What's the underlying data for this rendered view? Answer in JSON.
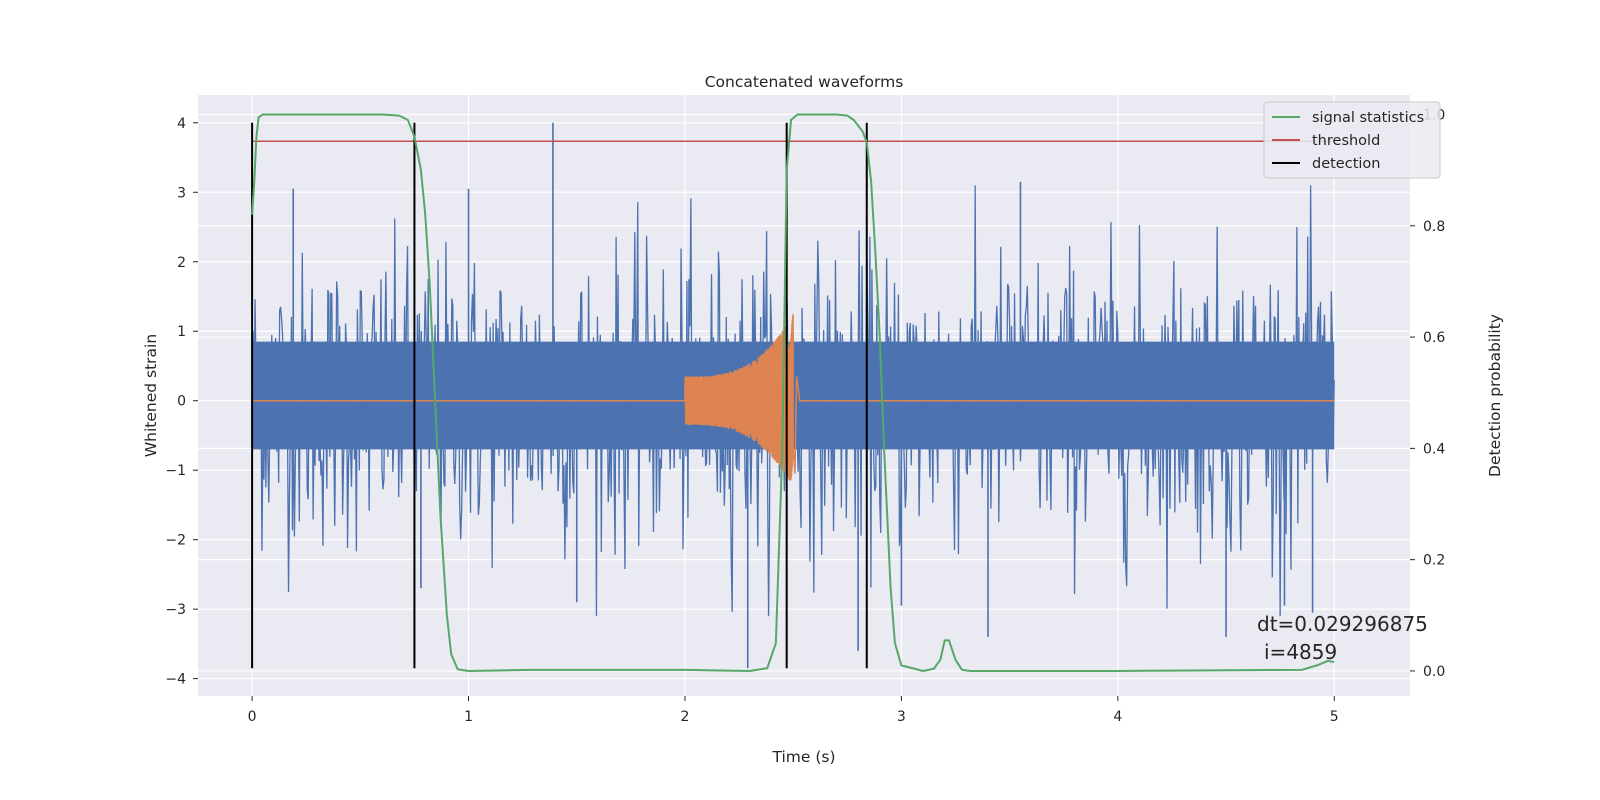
{
  "chart_data": {
    "type": "line",
    "title": "Concatenated waveforms",
    "xlabel": "Time (s)",
    "ylabel": "Whitened strain",
    "y2label": "Detection probability",
    "xlim": [
      -0.25,
      5.35
    ],
    "ylim": [
      -4.25,
      4.4
    ],
    "y2lim": [
      -0.045,
      1.035
    ],
    "xticks": [
      0,
      1,
      2,
      3,
      4,
      5
    ],
    "yticks": [
      -4,
      -3,
      -2,
      -1,
      0,
      1,
      2,
      3,
      4
    ],
    "y2ticks": [
      0.0,
      0.2,
      0.4,
      0.6,
      0.8,
      1.0
    ],
    "xtick_labels": [
      "0",
      "1",
      "2",
      "3",
      "4",
      "5"
    ],
    "ytick_labels": [
      "−4",
      "−3",
      "−2",
      "−1",
      "0",
      "1",
      "2",
      "3",
      "4"
    ],
    "y2tick_labels": [
      "0.0",
      "0.2",
      "0.4",
      "0.6",
      "0.8",
      "1.0"
    ],
    "grid": true,
    "legend_position": "top-right",
    "colors": {
      "strain": "#4c72b0",
      "template": "#dd8452",
      "signal_statistics": "#55a868",
      "threshold": "#c44e52",
      "detection": "#000000",
      "background": "#eaeaf2",
      "grid": "#ffffff"
    },
    "legend": [
      {
        "name": "signal statistics",
        "color": "#55a868"
      },
      {
        "name": "threshold",
        "color": "#c44e52"
      },
      {
        "name": "detection",
        "color": "#000000"
      }
    ],
    "threshold": 0.952,
    "threshold_x": [
      0,
      5
    ],
    "detections_x": [
      0,
      0.75,
      2.47,
      2.84
    ],
    "detection_y": [
      -3.85,
      4.0
    ],
    "strain": {
      "x_range": [
        0,
        5
      ],
      "n_spikes": 1100,
      "band": [
        -0.7,
        0.85
      ],
      "peaks": [
        {
          "x": 1.39,
          "y": 4.0
        },
        {
          "x": 2.29,
          "y": -3.85
        },
        {
          "x": 3.55,
          "y": 3.15
        },
        {
          "x": 0.19,
          "y": 3.05
        },
        {
          "x": 1.0,
          "y": 3.05
        },
        {
          "x": 1.5,
          "y": -2.9
        },
        {
          "x": 2.8,
          "y": -3.6
        },
        {
          "x": 3.0,
          "y": -2.95
        },
        {
          "x": 4.9,
          "y": -3.05
        },
        {
          "x": 3.4,
          "y": -3.4
        },
        {
          "x": 4.5,
          "y": -3.4
        },
        {
          "x": 0.78,
          "y": -2.7
        },
        {
          "x": 4.77,
          "y": -2.95
        }
      ]
    },
    "template": {
      "start": 2.0,
      "end": 2.5,
      "amp_start": 0.35,
      "amp_peak": 1.25,
      "ring_down": -1.05
    },
    "signal_statistics": {
      "x": [
        0,
        0.01,
        0.02,
        0.03,
        0.05,
        0.1,
        0.3,
        0.6,
        0.68,
        0.72,
        0.75,
        0.78,
        0.8,
        0.82,
        0.85,
        0.87,
        0.9,
        0.92,
        0.95,
        1.0,
        1.3,
        2.0,
        2.3,
        2.38,
        2.42,
        2.45,
        2.47,
        2.49,
        2.52,
        2.55,
        2.7,
        2.75,
        2.78,
        2.82,
        2.84,
        2.86,
        2.88,
        2.9,
        2.92,
        2.95,
        2.97,
        3.0,
        3.1,
        3.15,
        3.18,
        3.2,
        3.22,
        3.25,
        3.28,
        3.32,
        3.5,
        4.0,
        4.85,
        4.92,
        4.97,
        5.0
      ],
      "y": [
        0.82,
        0.88,
        0.96,
        0.995,
        1.0,
        1.0,
        1.0,
        1.0,
        0.998,
        0.99,
        0.96,
        0.9,
        0.82,
        0.7,
        0.45,
        0.28,
        0.1,
        0.03,
        0.003,
        0.0,
        0.002,
        0.002,
        0.0,
        0.005,
        0.05,
        0.4,
        0.9,
        0.99,
        1.0,
        1.0,
        1.0,
        0.998,
        0.99,
        0.97,
        0.95,
        0.88,
        0.75,
        0.6,
        0.4,
        0.15,
        0.05,
        0.01,
        0.0,
        0.004,
        0.02,
        0.055,
        0.055,
        0.02,
        0.002,
        0.0,
        0.0,
        0.0,
        0.002,
        0.01,
        0.018,
        0.016
      ]
    },
    "annotation": {
      "line1": "dt=0.029296875",
      "line2": "i=4859"
    }
  }
}
